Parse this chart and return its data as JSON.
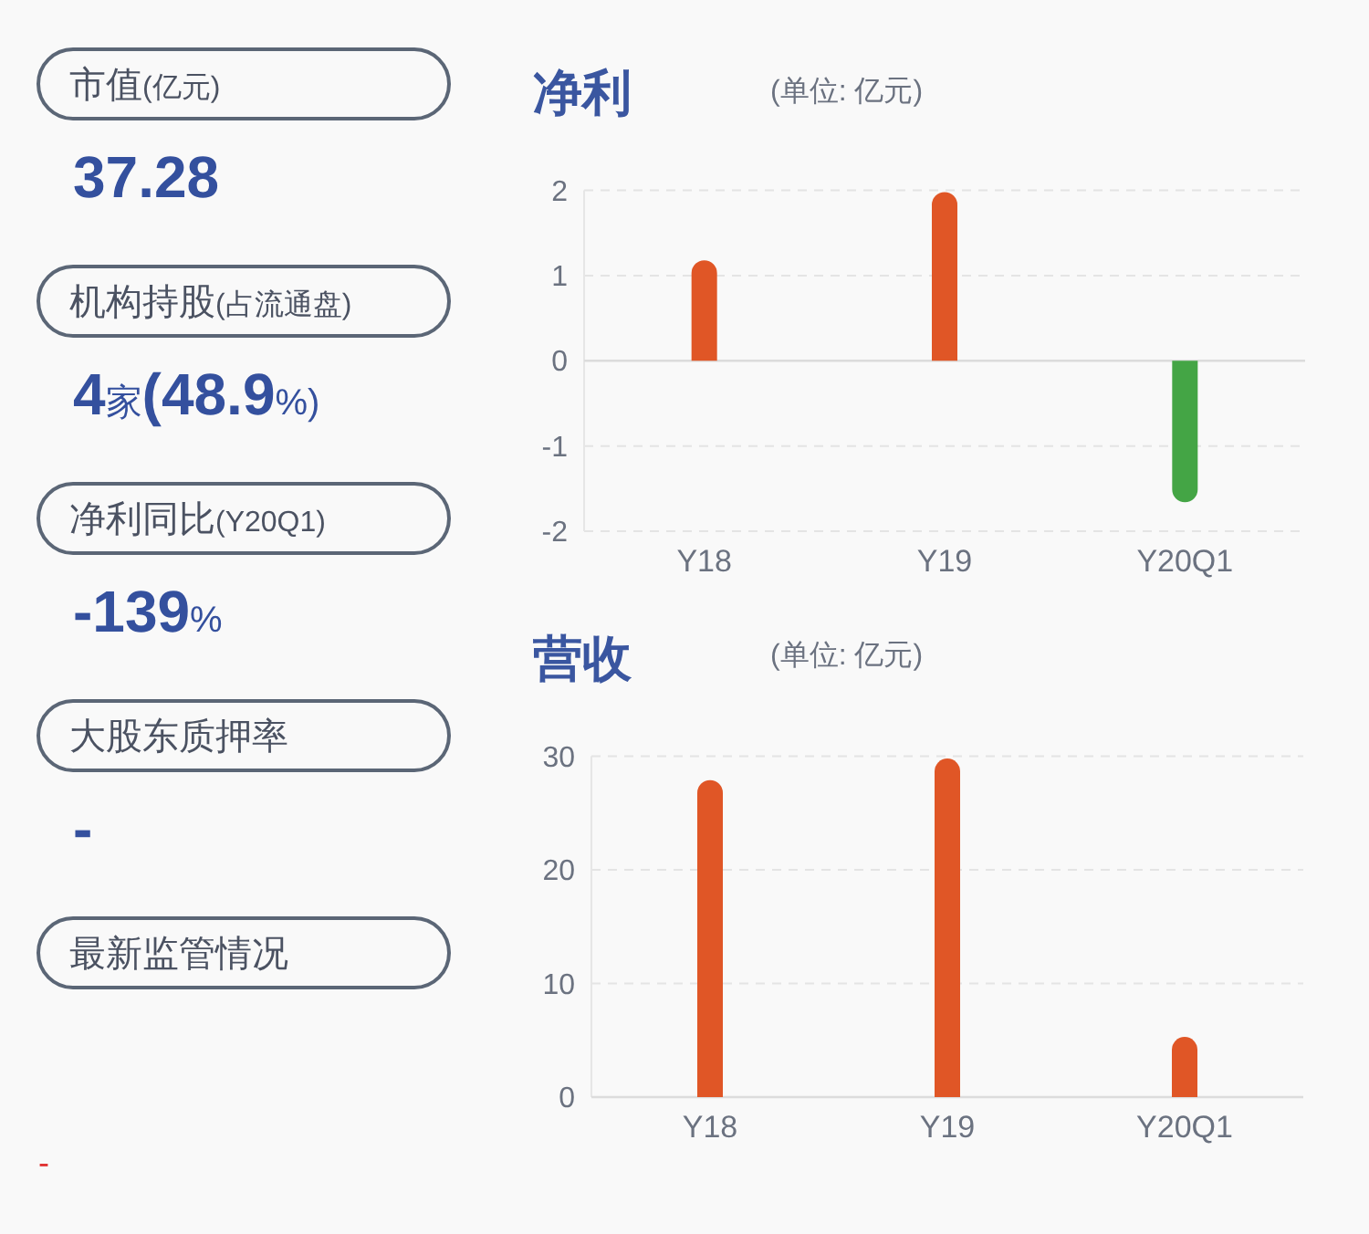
{
  "chart_data": [
    {
      "type": "other",
      "annotations": [
        "市值(亿元)",
        "37.28",
        "机构持股(占流通盘)",
        "4家(48.9%)",
        "净利同比(Y20Q1)",
        "-139%",
        "大股东质押率",
        "-",
        "最新监管情况",
        "-"
      ]
    },
    {
      "type": "bar",
      "title": "净利",
      "subtitle": "(单位: 亿元)",
      "categories": [
        "Y18",
        "Y19",
        "Y20Q1"
      ],
      "values": [
        1.18,
        1.98,
        -1.66
      ],
      "colors": [
        "#e05626",
        "#e05626",
        "#44a545"
      ],
      "ylim": [
        -2,
        2
      ],
      "yticks": [
        -2,
        -1,
        0,
        1,
        2
      ],
      "grid": "y"
    },
    {
      "type": "bar",
      "title": "营收",
      "subtitle": "(单位: 亿元)",
      "categories": [
        "Y18",
        "Y19",
        "Y20Q1"
      ],
      "values": [
        27.9,
        29.8,
        5.3
      ],
      "colors": [
        "#e05626",
        "#e05626",
        "#e05626"
      ],
      "ylim": [
        0,
        30
      ],
      "yticks": [
        0,
        10,
        20,
        30
      ],
      "grid": "y"
    }
  ]
}
